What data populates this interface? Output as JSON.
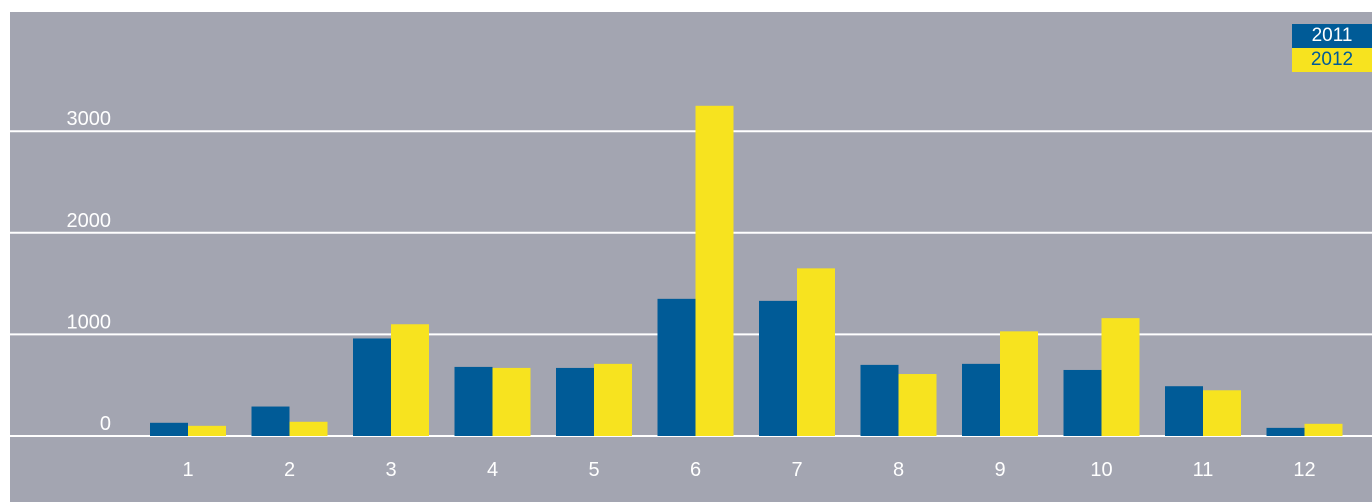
{
  "chart_data": {
    "type": "bar",
    "categories": [
      "1",
      "2",
      "3",
      "4",
      "5",
      "6",
      "7",
      "8",
      "9",
      "10",
      "11",
      "12"
    ],
    "series": [
      {
        "name": "2011",
        "color": "#005b97",
        "values": [
          130,
          290,
          960,
          680,
          670,
          1350,
          1330,
          700,
          710,
          650,
          490,
          80
        ]
      },
      {
        "name": "2012",
        "color": "#f7e31f",
        "values": [
          100,
          140,
          1100,
          670,
          710,
          3250,
          1650,
          610,
          1030,
          1160,
          450,
          120
        ]
      }
    ],
    "y_ticks": [
      "0",
      "1000",
      "2000",
      "3000"
    ],
    "ylim": [
      0,
      3400
    ],
    "grid": true,
    "legend_position": "top-right",
    "background": "#a3a5b1",
    "gridline_color": "#ffffff",
    "tick_label_color": "#ffffff"
  }
}
